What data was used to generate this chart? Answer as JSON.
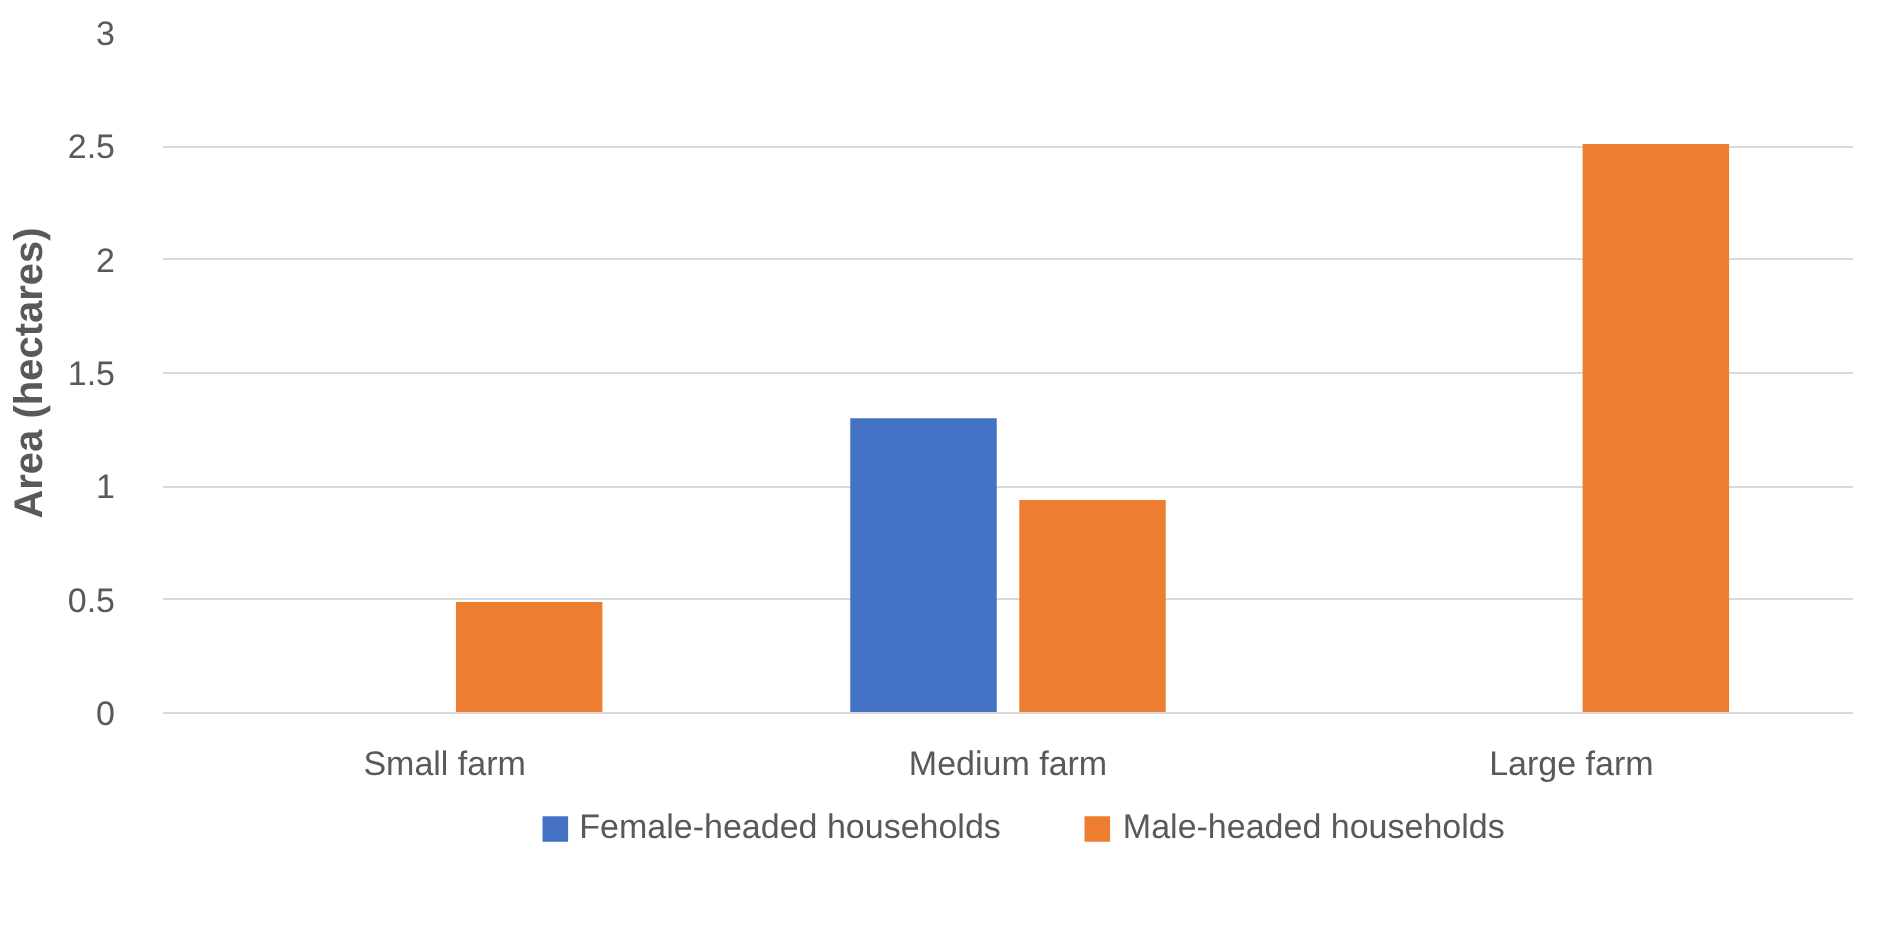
{
  "chart_data": {
    "type": "bar",
    "ylabel": "Area (hectares)",
    "categories": [
      "Small farm",
      "Medium farm",
      "Large farm"
    ],
    "series": [
      {
        "name": "Female-headed households",
        "color": "#4472c4",
        "values": [
          null,
          1.3,
          null
        ]
      },
      {
        "name": "Male-headed households",
        "color": "#ed7d31",
        "values": [
          0.49,
          0.94,
          2.51
        ]
      }
    ],
    "ylim": [
      0,
      3
    ],
    "yticks": [
      0,
      0.5,
      1,
      1.5,
      2,
      2.5,
      3
    ],
    "grid": "y",
    "legend": "bottom"
  }
}
